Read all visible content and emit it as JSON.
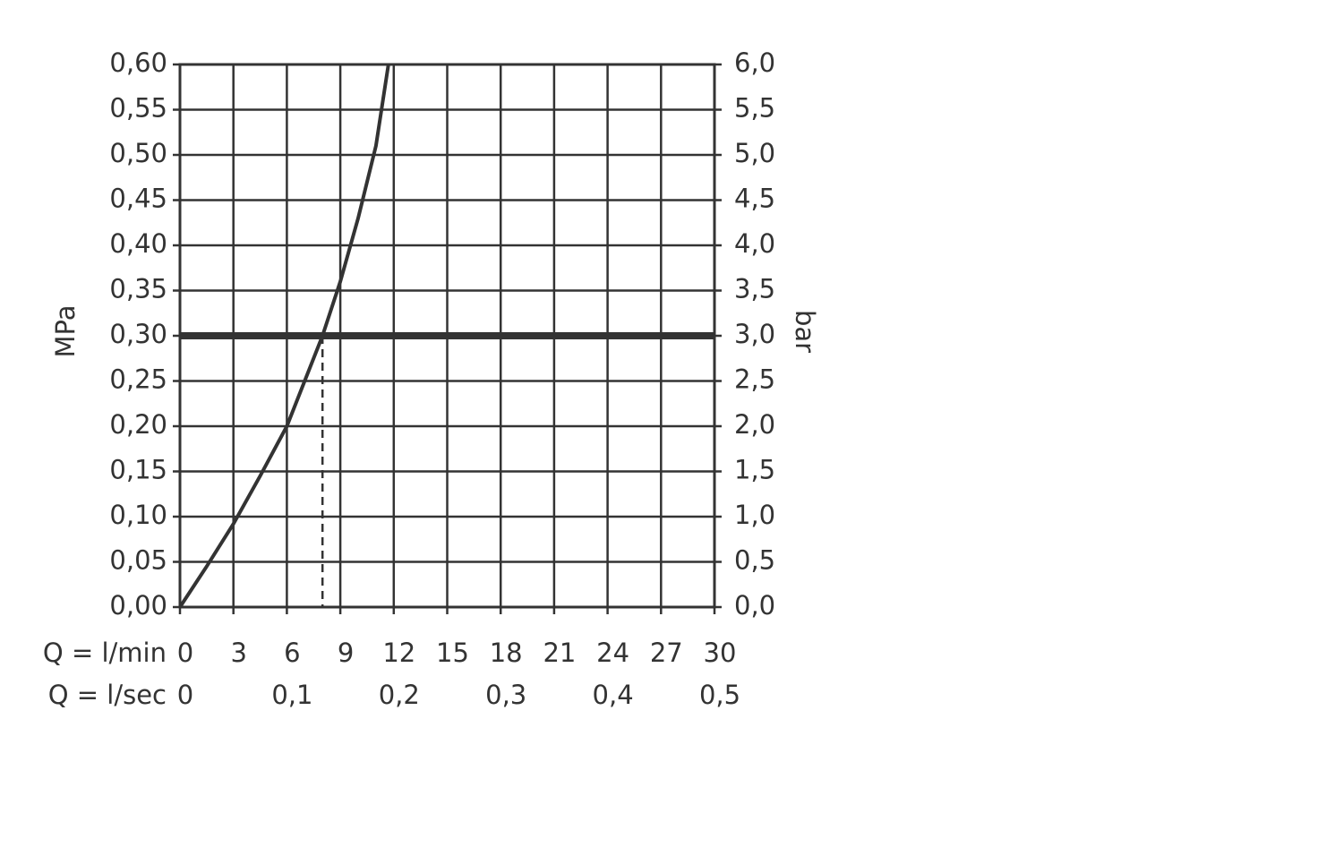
{
  "chart_data": {
    "type": "line",
    "x_label": "Q = l/min",
    "x2_label": "Q = l/sec",
    "y_label": "MPa",
    "y2_label": "bar",
    "x": [
      0,
      1.5,
      3,
      4.5,
      6,
      7,
      8,
      9,
      10,
      11,
      11.7
    ],
    "series": [
      {
        "color": "#333333",
        "values": [
          0,
          0.045,
          0.092,
          0.145,
          0.2,
          0.25,
          0.3,
          0.36,
          0.43,
          0.51,
          0.6
        ]
      }
    ],
    "reference_y": 0.3,
    "reference_x": 8,
    "xlim": [
      0,
      30
    ],
    "xticks": [
      0,
      3,
      6,
      9,
      12,
      15,
      18,
      21,
      24,
      27,
      30
    ],
    "x2lim": [
      0,
      0.5
    ],
    "x2ticks": [
      0,
      {
        "value": 0.1,
        "label": "0,1"
      },
      {
        "value": 0.2,
        "label": "0,2"
      },
      {
        "value": 0.3,
        "label": "0,3"
      },
      {
        "value": 0.4,
        "label": "0,4"
      },
      {
        "value": 0.5,
        "label": "0,5"
      }
    ],
    "ylim": [
      0,
      0.6
    ],
    "yticks": [
      {
        "value": 0,
        "label": "0,00"
      },
      {
        "value": 0.05,
        "label": "0,05"
      },
      {
        "value": 0.1,
        "label": "0,10"
      },
      {
        "value": 0.15,
        "label": "0,15"
      },
      {
        "value": 0.2,
        "label": "0,20"
      },
      {
        "value": 0.25,
        "label": "0,25"
      },
      {
        "value": 0.3,
        "label": "0,30"
      },
      {
        "value": 0.35,
        "label": "0,35"
      },
      {
        "value": 0.4,
        "label": "0,40"
      },
      {
        "value": 0.45,
        "label": "0,45"
      },
      {
        "value": 0.5,
        "label": "0,50"
      },
      {
        "value": 0.55,
        "label": "0,55"
      },
      {
        "value": 0.6,
        "label": "0,60"
      }
    ],
    "y2lim": [
      0,
      6
    ],
    "y2ticks": [
      {
        "value": 0,
        "label": "0,0"
      },
      {
        "value": 0.5,
        "label": "0,5"
      },
      {
        "value": 1,
        "label": "1,0"
      },
      {
        "value": 1.5,
        "label": "1,5"
      },
      {
        "value": 2,
        "label": "2,0"
      },
      {
        "value": 2.5,
        "label": "2,5"
      },
      {
        "value": 3,
        "label": "3,0"
      },
      {
        "value": 3.5,
        "label": "3,5"
      },
      {
        "value": 4,
        "label": "4,0"
      },
      {
        "value": 4.5,
        "label": "4,5"
      },
      {
        "value": 5,
        "label": "5,0"
      },
      {
        "value": 5.5,
        "label": "5,5"
      },
      {
        "value": 6,
        "label": "6,0"
      }
    ],
    "grid": true
  }
}
